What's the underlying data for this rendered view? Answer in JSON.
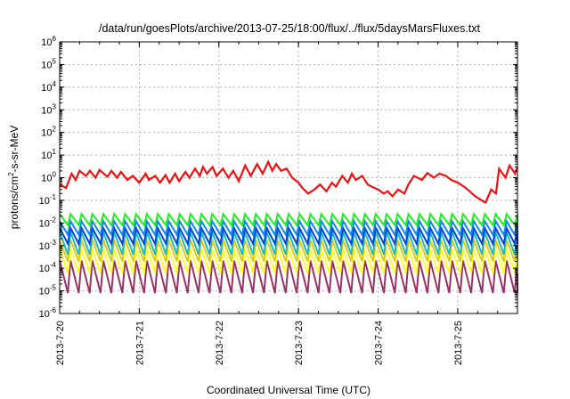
{
  "chart_data": {
    "type": "line",
    "title": "/data/run/goesPlots/archive/2013-07-25/18:00/flux/../flux/5daysMarsFluxes.txt",
    "xlabel": "Coordinated Universal Time (UTC)",
    "ylabel_parts": [
      "protons/cm",
      "2",
      "-s-sr-MeV"
    ],
    "yscale": "log",
    "ylim": [
      1e-06,
      1000000.0
    ],
    "xlim": [
      "2013-07-20 00:00",
      "2013-07-25 18:00"
    ],
    "grid": true,
    "legend": "none",
    "x_ticks": [
      "2013-7-20",
      "2013-7-21",
      "2013-7-22",
      "2013-7-23",
      "2013-7-24",
      "2013-7-25"
    ],
    "y_ticks": [
      {
        "base": "10",
        "exp": "6",
        "value": 1000000.0
      },
      {
        "base": "10",
        "exp": "5",
        "value": 100000.0
      },
      {
        "base": "10",
        "exp": "4",
        "value": 10000.0
      },
      {
        "base": "10",
        "exp": "3",
        "value": 1000.0
      },
      {
        "base": "10",
        "exp": "2",
        "value": 100.0
      },
      {
        "base": "10",
        "exp": "1",
        "value": 10.0
      },
      {
        "base": "10",
        "exp": "0",
        "value": 1.0
      },
      {
        "base": "10",
        "exp": "-1",
        "value": 0.1
      },
      {
        "base": "10",
        "exp": "-2",
        "value": 0.01
      },
      {
        "base": "10",
        "exp": "-3",
        "value": 0.001
      },
      {
        "base": "10",
        "exp": "-4",
        "value": 0.0001
      },
      {
        "base": "10",
        "exp": "-5",
        "value": 1e-05
      },
      {
        "base": "10",
        "exp": "-6",
        "value": 1e-06
      }
    ],
    "series": [
      {
        "color": "#ee1111",
        "sawtooth": false,
        "x_days": [
          0.0,
          0.08,
          0.15,
          0.2,
          0.25,
          0.33,
          0.38,
          0.45,
          0.5,
          0.6,
          0.65,
          0.72,
          0.77,
          0.85,
          0.92,
          1.0,
          1.08,
          1.12,
          1.2,
          1.26,
          1.33,
          1.38,
          1.45,
          1.5,
          1.58,
          1.63,
          1.7,
          1.76,
          1.8,
          1.85,
          1.92,
          1.97,
          2.05,
          2.12,
          2.18,
          2.25,
          2.33,
          2.4,
          2.48,
          2.55,
          2.62,
          2.67,
          2.72,
          2.78,
          2.85,
          2.92,
          3.0,
          3.05,
          3.12,
          3.2,
          3.27,
          3.35,
          3.42,
          3.47,
          3.55,
          3.62,
          3.67,
          3.72,
          3.8,
          3.87,
          3.92,
          4.0,
          4.07,
          4.12,
          4.18,
          4.25,
          4.33,
          4.38,
          4.45,
          4.55,
          4.62,
          4.7,
          4.77,
          4.85,
          4.92,
          5.0,
          5.08,
          5.15,
          5.22,
          5.3,
          5.35,
          5.42,
          5.48,
          5.52,
          5.6,
          5.65,
          5.72,
          5.75
        ],
        "y": [
          0.5,
          0.35,
          1.5,
          0.8,
          2.0,
          1.2,
          2.0,
          1.0,
          2.2,
          1.1,
          2.0,
          1.0,
          1.8,
          0.8,
          1.2,
          0.6,
          1.5,
          0.8,
          1.2,
          0.6,
          1.3,
          0.6,
          1.5,
          0.7,
          1.8,
          1.0,
          2.5,
          1.2,
          3.0,
          1.5,
          3.0,
          1.2,
          2.5,
          1.0,
          2.0,
          0.7,
          3.5,
          1.2,
          4.0,
          1.5,
          5.0,
          2.0,
          4.0,
          2.0,
          2.5,
          1.0,
          0.6,
          0.35,
          0.2,
          0.3,
          0.5,
          0.25,
          0.6,
          0.4,
          1.2,
          0.6,
          1.5,
          0.8,
          1.2,
          0.5,
          0.4,
          0.3,
          0.2,
          0.25,
          0.15,
          0.3,
          0.2,
          0.5,
          1.2,
          0.8,
          1.6,
          1.0,
          1.5,
          1.2,
          0.8,
          0.6,
          0.4,
          0.25,
          0.15,
          0.1,
          0.08,
          0.3,
          0.2,
          2.5,
          1.0,
          3.5,
          1.5,
          3.0
        ]
      },
      {
        "color": "#22ee22",
        "sawtooth": true,
        "teeth": 42,
        "peak": 0.025,
        "trough": 0.008
      },
      {
        "color": "#1188ee",
        "sawtooth": true,
        "teeth": 42,
        "peak": 0.012,
        "trough": 0.003
      },
      {
        "color": "#0044dd",
        "sawtooth": true,
        "teeth": 42,
        "peak": 0.006,
        "trough": 0.0012
      },
      {
        "color": "#22bbbb",
        "sawtooth": true,
        "teeth": 42,
        "peak": 0.004,
        "trough": 0.0004
      },
      {
        "color": "#ddcc11",
        "sawtooth": true,
        "teeth": 42,
        "peak": 0.0018,
        "trough": 0.0002
      },
      {
        "color": "#ffff33",
        "sawtooth": true,
        "teeth": 42,
        "peak": 0.0007,
        "trough": 6e-05
      },
      {
        "color": "#993366",
        "sawtooth": true,
        "teeth": 42,
        "peak": 0.00022,
        "trough": 8e-06
      }
    ]
  }
}
